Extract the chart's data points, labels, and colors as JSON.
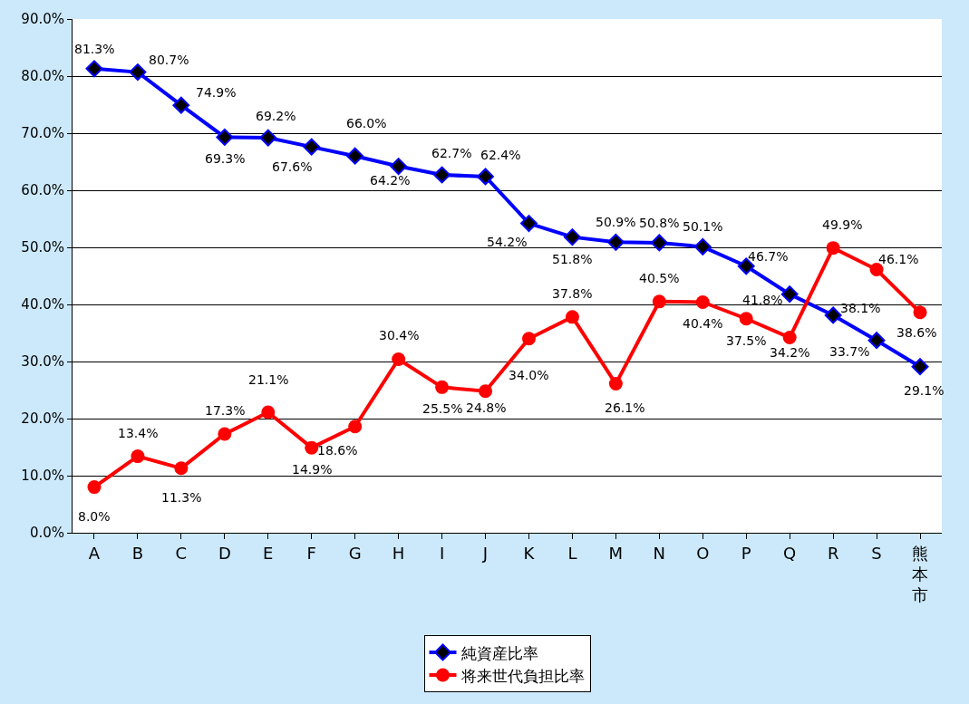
{
  "chart_data": {
    "type": "line",
    "categories": [
      "A",
      "B",
      "C",
      "D",
      "E",
      "F",
      "G",
      "H",
      "I",
      "J",
      "K",
      "L",
      "M",
      "N",
      "O",
      "P",
      "Q",
      "R",
      "S",
      "熊本市"
    ],
    "series": [
      {
        "name": "純資産比率",
        "color": "#0000ff",
        "marker": "diamond",
        "values": [
          81.3,
          80.7,
          74.9,
          69.3,
          69.2,
          67.6,
          66.0,
          64.2,
          62.7,
          62.4,
          54.2,
          51.8,
          50.9,
          50.8,
          50.1,
          46.7,
          41.8,
          38.1,
          33.7,
          29.1
        ],
        "value_labels": [
          "81.3%",
          "80.7%",
          "74.9%",
          "69.3%",
          "69.2%",
          "67.6%",
          "66.0%",
          "64.2%",
          "62.7%",
          "62.4%",
          "54.2%",
          "51.8%",
          "50.9%",
          "50.8%",
          "50.1%",
          "46.7%",
          "41.8%",
          "38.1%",
          "33.7%",
          "29.1%"
        ]
      },
      {
        "name": "将来世代負担比率",
        "color": "#ff0000",
        "marker": "circle",
        "values": [
          8.0,
          13.4,
          11.3,
          17.3,
          21.1,
          14.9,
          18.6,
          30.4,
          25.5,
          24.8,
          34.0,
          37.8,
          26.1,
          40.5,
          40.4,
          37.5,
          34.2,
          49.9,
          46.1,
          38.6
        ],
        "value_labels": [
          "8.0%",
          "13.4%",
          "11.3%",
          "17.3%",
          "21.1%",
          "14.9%",
          "18.6%",
          "30.4%",
          "25.5%",
          "24.8%",
          "34.0%",
          "37.8%",
          "26.1%",
          "40.5%",
          "40.4%",
          "37.5%",
          "34.2%",
          "49.9%",
          "46.1%",
          "38.6%"
        ]
      }
    ],
    "ylim": [
      0,
      90
    ],
    "yticks": [
      {
        "value": 0,
        "label": "0.0%"
      },
      {
        "value": 10,
        "label": "10.0%"
      },
      {
        "value": 20,
        "label": "20.0%"
      },
      {
        "value": 30,
        "label": "30.0%"
      },
      {
        "value": 40,
        "label": "40.0%"
      },
      {
        "value": 50,
        "label": "50.0%"
      },
      {
        "value": 60,
        "label": "60.0%"
      },
      {
        "value": 70,
        "label": "70.0%"
      },
      {
        "value": 80,
        "label": "80.0%"
      },
      {
        "value": 90,
        "label": "90.0%"
      }
    ],
    "grid": "y",
    "legend": "bottom",
    "line_style": "solid"
  }
}
